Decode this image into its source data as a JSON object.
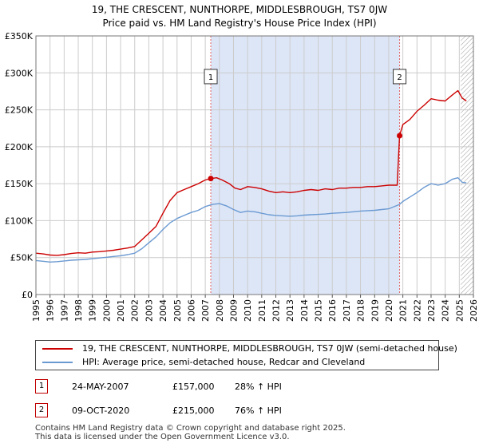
{
  "chart_data": {
    "type": "line",
    "title": "19, THE CRESCENT, NUNTHORPE, MIDDLESBROUGH, TS7 0JW",
    "subtitle": "Price paid vs. HM Land Registry's House Price Index (HPI)",
    "xlim": [
      1995,
      2026
    ],
    "ylim": [
      0,
      350000
    ],
    "yticks": [
      {
        "value": 0,
        "label": "£0"
      },
      {
        "value": 50000,
        "label": "£50K"
      },
      {
        "value": 100000,
        "label": "£100K"
      },
      {
        "value": 150000,
        "label": "£150K"
      },
      {
        "value": 200000,
        "label": "£200K"
      },
      {
        "value": 250000,
        "label": "£250K"
      },
      {
        "value": 300000,
        "label": "£300K"
      },
      {
        "value": 350000,
        "label": "£350K"
      }
    ],
    "xticks": [
      "1995",
      "1996",
      "1997",
      "1998",
      "1999",
      "2000",
      "2001",
      "2002",
      "2003",
      "2004",
      "2005",
      "2006",
      "2007",
      "2008",
      "2009",
      "2010",
      "2011",
      "2012",
      "2013",
      "2014",
      "2015",
      "2016",
      "2017",
      "2018",
      "2019",
      "2020",
      "2021",
      "2022",
      "2023",
      "2024",
      "2025",
      "2026"
    ],
    "grid": true,
    "shaded_region": {
      "from": 2007.39,
      "to": 2020.77,
      "color": "#dde6f7"
    },
    "hatched_after": 2025.1,
    "series": [
      {
        "name": "19, THE CRESCENT, NUNTHORPE, MIDDLESBROUGH, TS7 0JW (semi-detached house)",
        "color": "#cc0000",
        "points": [
          [
            1995.0,
            56000
          ],
          [
            1995.5,
            55000
          ],
          [
            1996.0,
            53500
          ],
          [
            1996.5,
            53000
          ],
          [
            1997.0,
            54000
          ],
          [
            1997.5,
            55500
          ],
          [
            1998.0,
            56500
          ],
          [
            1998.5,
            56000
          ],
          [
            1999.0,
            57500
          ],
          [
            1999.5,
            58000
          ],
          [
            2000.0,
            59000
          ],
          [
            2000.5,
            60000
          ],
          [
            2001.0,
            61500
          ],
          [
            2001.5,
            63000
          ],
          [
            2002.0,
            65000
          ],
          [
            2002.5,
            74000
          ],
          [
            2003.0,
            83000
          ],
          [
            2003.5,
            92000
          ],
          [
            2004.0,
            110000
          ],
          [
            2004.5,
            127000
          ],
          [
            2005.0,
            138000
          ],
          [
            2005.5,
            142000
          ],
          [
            2006.0,
            146000
          ],
          [
            2006.5,
            150000
          ],
          [
            2007.0,
            155000
          ],
          [
            2007.39,
            157000
          ],
          [
            2007.8,
            158000
          ],
          [
            2008.2,
            155000
          ],
          [
            2008.7,
            150000
          ],
          [
            2009.1,
            144000
          ],
          [
            2009.5,
            142000
          ],
          [
            2010.0,
            146000
          ],
          [
            2010.5,
            145000
          ],
          [
            2011.0,
            143000
          ],
          [
            2011.5,
            140000
          ],
          [
            2012.0,
            138000
          ],
          [
            2012.5,
            139000
          ],
          [
            2013.0,
            138000
          ],
          [
            2013.5,
            139000
          ],
          [
            2014.0,
            141000
          ],
          [
            2014.5,
            142000
          ],
          [
            2015.0,
            141000
          ],
          [
            2015.5,
            143000
          ],
          [
            2016.0,
            142000
          ],
          [
            2016.5,
            144000
          ],
          [
            2017.0,
            144000
          ],
          [
            2017.5,
            145000
          ],
          [
            2018.0,
            145000
          ],
          [
            2018.5,
            146000
          ],
          [
            2019.0,
            146000
          ],
          [
            2019.5,
            147000
          ],
          [
            2020.0,
            148000
          ],
          [
            2020.6,
            148000
          ],
          [
            2020.77,
            215000
          ],
          [
            2021.0,
            230000
          ],
          [
            2021.5,
            237000
          ],
          [
            2022.0,
            248000
          ],
          [
            2022.5,
            256000
          ],
          [
            2023.0,
            265000
          ],
          [
            2023.5,
            263000
          ],
          [
            2024.0,
            262000
          ],
          [
            2024.5,
            270000
          ],
          [
            2024.9,
            276000
          ],
          [
            2025.2,
            266000
          ],
          [
            2025.5,
            262000
          ]
        ]
      },
      {
        "name": "HPI: Average price, semi-detached house, Redcar and Cleveland",
        "color": "#6b9ad2",
        "points": [
          [
            1995.0,
            46000
          ],
          [
            1995.5,
            45000
          ],
          [
            1996.0,
            44000
          ],
          [
            1996.5,
            44500
          ],
          [
            1997.0,
            45500
          ],
          [
            1997.5,
            46500
          ],
          [
            1998.0,
            47000
          ],
          [
            1998.5,
            47500
          ],
          [
            1999.0,
            48500
          ],
          [
            1999.5,
            49500
          ],
          [
            2000.0,
            50500
          ],
          [
            2000.5,
            51500
          ],
          [
            2001.0,
            52500
          ],
          [
            2001.5,
            54000
          ],
          [
            2002.0,
            56000
          ],
          [
            2002.5,
            62000
          ],
          [
            2003.0,
            70000
          ],
          [
            2003.5,
            78000
          ],
          [
            2004.0,
            88000
          ],
          [
            2004.5,
            97000
          ],
          [
            2005.0,
            103000
          ],
          [
            2005.5,
            107000
          ],
          [
            2006.0,
            111000
          ],
          [
            2006.5,
            114000
          ],
          [
            2007.0,
            119000
          ],
          [
            2007.5,
            122000
          ],
          [
            2008.0,
            123000
          ],
          [
            2008.5,
            120000
          ],
          [
            2009.0,
            115000
          ],
          [
            2009.5,
            111000
          ],
          [
            2010.0,
            113000
          ],
          [
            2010.5,
            112000
          ],
          [
            2011.0,
            110000
          ],
          [
            2011.5,
            108000
          ],
          [
            2012.0,
            107000
          ],
          [
            2012.5,
            106500
          ],
          [
            2013.0,
            106000
          ],
          [
            2013.5,
            106500
          ],
          [
            2014.0,
            107500
          ],
          [
            2014.5,
            108000
          ],
          [
            2015.0,
            108500
          ],
          [
            2015.5,
            109000
          ],
          [
            2016.0,
            110000
          ],
          [
            2016.5,
            110500
          ],
          [
            2017.0,
            111000
          ],
          [
            2017.5,
            112000
          ],
          [
            2018.0,
            113000
          ],
          [
            2018.5,
            113500
          ],
          [
            2019.0,
            114000
          ],
          [
            2019.5,
            115000
          ],
          [
            2020.0,
            116000
          ],
          [
            2020.77,
            122000
          ],
          [
            2021.0,
            126000
          ],
          [
            2021.5,
            132000
          ],
          [
            2022.0,
            138000
          ],
          [
            2022.5,
            145000
          ],
          [
            2023.0,
            150000
          ],
          [
            2023.5,
            148000
          ],
          [
            2024.0,
            150000
          ],
          [
            2024.5,
            156000
          ],
          [
            2024.9,
            158000
          ],
          [
            2025.2,
            152000
          ],
          [
            2025.5,
            151000
          ]
        ]
      }
    ],
    "sales": [
      {
        "id": "1",
        "x": 2007.39,
        "price": 157000,
        "date": "24-MAY-2007",
        "price_label": "£157,000",
        "hpi": "28% ↑ HPI"
      },
      {
        "id": "2",
        "x": 2020.77,
        "price": 215000,
        "date": "09-OCT-2020",
        "price_label": "£215,000",
        "hpi": "76% ↑ HPI"
      }
    ],
    "marker_box_value": 295000
  },
  "legend": {
    "property_label": "19, THE CRESCENT, NUNTHORPE, MIDDLESBROUGH, TS7 0JW (semi-detached house)",
    "hpi_label": "HPI: Average price, semi-detached house, Redcar and Cleveland"
  },
  "footer": {
    "line1": "Contains HM Land Registry data © Crown copyright and database right 2025.",
    "line2": "This data is licensed under the Open Government Licence v3.0."
  },
  "colors": {
    "property": "#cc0000",
    "hpi": "#6b9ad2",
    "shade": "#dde6f7",
    "grid": "#cccccc"
  }
}
